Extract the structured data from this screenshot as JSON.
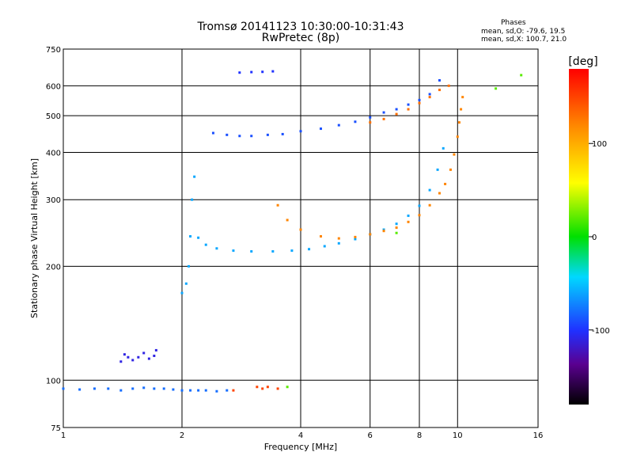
{
  "header": {
    "title_line1": "Tromsø 20141123 10:30:00-10:31:43",
    "title_line2": "RwPretec (8p)",
    "stats_heading": "Phases",
    "stats_o": "mean, sd,O: -79.6, 19.5",
    "stats_x": "mean, sd,X: 100.7, 21.0"
  },
  "colorbar": {
    "unit": "[deg]",
    "range": [
      -180,
      180
    ],
    "ticks": [
      100,
      0,
      -100
    ],
    "tick_labels": [
      "100",
      "0",
      "-100"
    ]
  },
  "chart_data": {
    "type": "scatter",
    "xlabel": "Frequency [MHz]",
    "ylabel": "Stationary phase Virtual Height [km]",
    "xscale": "log",
    "yscale": "log",
    "xlim": [
      1,
      16
    ],
    "ylim": [
      75,
      750
    ],
    "xticks": [
      1,
      2,
      4,
      6,
      8,
      10,
      16
    ],
    "xtick_labels": [
      "1",
      "2",
      "4",
      "6",
      "8",
      "10",
      "16"
    ],
    "yticks": [
      75,
      100,
      200,
      300,
      400,
      500,
      600,
      750
    ],
    "ytick_labels": [
      "75",
      "100",
      "200",
      "300",
      "400",
      "500",
      "600",
      "750"
    ],
    "grid": true,
    "series": [
      {
        "name": "",
        "phase": -80,
        "x": [
          1.0,
          1.1,
          1.2,
          1.3,
          1.4,
          1.5,
          1.6,
          1.7,
          1.8,
          1.9,
          2.0,
          2.1,
          2.2,
          2.3,
          2.45,
          2.6
        ],
        "y": [
          95,
          94.5,
          95,
          95,
          94,
          95,
          95.5,
          95,
          95,
          94.5,
          94,
          94,
          94,
          94,
          93.5,
          94
        ]
      },
      {
        "name": "",
        "phase": -110,
        "x": [
          1.4,
          1.43,
          1.46,
          1.5,
          1.55,
          1.6,
          1.65,
          1.7,
          1.72
        ],
        "y": [
          112,
          117,
          115,
          113,
          115,
          118,
          114,
          116,
          120
        ]
      },
      {
        "name": "",
        "phase": -60,
        "x": [
          2.0,
          2.05,
          2.08,
          2.1,
          2.12,
          2.15,
          2.2,
          2.3,
          2.45,
          2.7,
          3.0,
          3.4,
          3.8,
          4.2,
          4.6,
          5.0,
          5.5,
          6.0,
          6.5,
          7.0,
          7.5,
          8.0,
          8.5,
          8.9,
          9.2
        ],
        "y": [
          170,
          180,
          200,
          240,
          300,
          345,
          238,
          228,
          223,
          220,
          219,
          219,
          220,
          222,
          226,
          230,
          236,
          243,
          250,
          259,
          272,
          289,
          318,
          360,
          410
        ]
      },
      {
        "name": "",
        "phase": 120,
        "x": [
          3.5,
          3.7,
          4.0,
          4.5,
          5.0,
          5.5,
          6.0,
          6.5,
          7.0,
          7.5,
          8.0,
          8.5,
          9.0,
          9.3,
          9.6,
          9.8,
          10.0,
          10.1,
          10.2,
          10.3
        ],
        "y": [
          290,
          265,
          250,
          240,
          237,
          239,
          243,
          248,
          253,
          262,
          273,
          290,
          312,
          330,
          360,
          395,
          440,
          480,
          520,
          560
        ]
      },
      {
        "name": "",
        "phase": -90,
        "x": [
          2.4,
          2.6,
          2.8,
          3.0,
          3.3,
          3.6,
          4.0,
          4.5,
          5.0,
          5.5,
          6.0,
          6.5,
          7.0,
          7.5,
          8.0,
          8.5,
          9.0
        ],
        "y": [
          450,
          445,
          442,
          442,
          445,
          447,
          455,
          462,
          472,
          482,
          495,
          510,
          520,
          535,
          550,
          570,
          620
        ]
      },
      {
        "name": "",
        "phase": 130,
        "x": [
          6.0,
          6.5,
          7.0,
          7.5,
          8.0,
          8.5,
          9.0,
          9.5
        ],
        "y": [
          480,
          490,
          505,
          520,
          540,
          560,
          585,
          600
        ]
      },
      {
        "name": "",
        "phase": -100,
        "x": [
          2.8,
          3.0,
          3.2,
          3.4
        ],
        "y": [
          650,
          652,
          653,
          655
        ]
      },
      {
        "name": "",
        "phase": 150,
        "x": [
          2.7,
          3.1,
          3.2,
          3.3,
          3.5
        ],
        "y": [
          94,
          96,
          95,
          96,
          95
        ]
      },
      {
        "name": "",
        "phase": 20,
        "x": [
          3.7,
          7.0,
          12.5,
          14.5
        ],
        "y": [
          96,
          245,
          590,
          640
        ]
      }
    ]
  }
}
